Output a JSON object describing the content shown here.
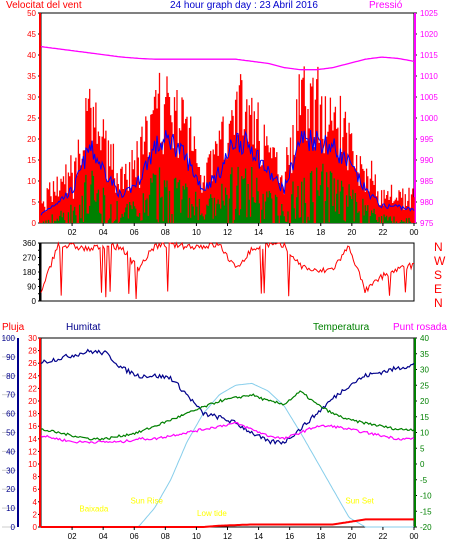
{
  "header": {
    "wind_speed": "Velocitat del vent",
    "title": "24 hour graph day : 23 Abril 2016",
    "pressure": "Pressió",
    "rain": "Pluja",
    "humidity": "Humitat",
    "temperature": "Temperatura",
    "dewpoint": "Punt rosada"
  },
  "colors": {
    "wind": "#0000ff",
    "gust": "#ff0000",
    "green": "#008000",
    "pressure": "#ff00ff",
    "humidity": "#00008b",
    "temperature": "#008000",
    "dewpoint": "#ff00ff",
    "rain": "#ff0000",
    "solar": "#87ceeb",
    "annotation": "#ffff00"
  },
  "annotations": [
    {
      "text": "Baixada",
      "x": 3.4,
      "y": -15
    },
    {
      "text": "Sun Rise",
      "x": 6.8,
      "y": -12.5
    },
    {
      "text": "Low tide",
      "x": 11.0,
      "y": -16.5
    },
    {
      "text": "Sun Set",
      "x": 20.5,
      "y": -12.5
    }
  ],
  "chart_data": [
    {
      "type": "line",
      "x_ticks": [
        "02",
        "04",
        "06",
        "08",
        "10",
        "12",
        "14",
        "16",
        "18",
        "20",
        "22",
        "00"
      ],
      "xlim": [
        0,
        24
      ],
      "left_axis": {
        "ticks": [
          0,
          5,
          10,
          15,
          20,
          25,
          30,
          35,
          40,
          45,
          50
        ],
        "ylim": [
          0,
          50
        ]
      },
      "right_axis": {
        "ticks": [
          975,
          980,
          985,
          990,
          995,
          1000,
          1005,
          1010,
          1015,
          1020,
          1025
        ],
        "ylim": [
          975,
          1025
        ]
      },
      "series": [
        {
          "name": "Velocitat del vent",
          "values": [
            2,
            5,
            8,
            18,
            12,
            6,
            10,
            18,
            20,
            15,
            8,
            12,
            20,
            18,
            12,
            8,
            20,
            20,
            18,
            14,
            8,
            4,
            4,
            3
          ]
        },
        {
          "name": "Pressió",
          "values": [
            1017,
            1016.5,
            1016,
            1015.5,
            1015,
            1014.5,
            1014.2,
            1014,
            1014,
            1014,
            1014,
            1014,
            1014,
            1013.5,
            1013,
            1012,
            1011.5,
            1011.5,
            1012,
            1013,
            1014,
            1014.5,
            1014.2,
            1013.5
          ]
        }
      ]
    },
    {
      "type": "line",
      "xlim": [
        0,
        24
      ],
      "y_ticks_left": [
        0,
        45,
        90,
        135,
        180,
        225,
        270,
        315,
        360
      ],
      "y_labels_right": [
        "N",
        "W",
        "S",
        "E",
        "N"
      ],
      "series": [
        {
          "values": [
            40,
            345,
            340,
            320,
            345,
            330,
            200,
            340,
            350,
            340,
            340,
            350,
            200,
            320,
            350,
            340,
            220,
            180,
            200,
            340,
            60,
            150,
            200,
            220
          ]
        }
      ]
    },
    {
      "type": "line",
      "xlim": [
        0,
        24
      ],
      "humidity_axis": {
        "ticks": [
          0,
          10,
          20,
          30,
          40,
          50,
          60,
          70,
          80,
          90,
          100
        ],
        "ylim": [
          0,
          100
        ]
      },
      "rain_axis": {
        "ticks": [
          0,
          2,
          4,
          6,
          8,
          10,
          12,
          14,
          16,
          18,
          20,
          22,
          24,
          26,
          28,
          30
        ],
        "ylim": [
          0,
          30
        ]
      },
      "temperature_axis": {
        "ticks": [
          -20,
          -15,
          -10,
          -5,
          0,
          5,
          10,
          15,
          20,
          25,
          30,
          35,
          40
        ],
        "ylim": [
          -20,
          40
        ]
      },
      "series": [
        {
          "name": "Humitat",
          "values": [
            87,
            89,
            91,
            93,
            92,
            84,
            80,
            80,
            79,
            70,
            60,
            58,
            55,
            50,
            45,
            45,
            52,
            60,
            68,
            75,
            80,
            82,
            84,
            86
          ]
        },
        {
          "name": "Temperatura",
          "values": [
            11,
            10,
            9,
            8,
            8,
            9,
            10,
            12,
            14,
            16,
            18,
            20,
            21,
            22,
            20,
            19,
            23,
            19,
            16,
            14,
            13,
            12,
            11,
            11
          ]
        },
        {
          "name": "Punt rosada",
          "values": [
            9,
            8,
            7,
            7,
            7,
            7,
            8,
            8,
            9,
            10,
            11,
            12,
            13,
            11,
            9,
            8,
            10,
            12,
            12,
            11,
            10,
            9,
            8,
            8
          ]
        },
        {
          "values": [
            0,
            0,
            0,
            0,
            0,
            0,
            0,
            10,
            25,
            45,
            60,
            70,
            75,
            76,
            72,
            64,
            50,
            35,
            20,
            5,
            0,
            0,
            0,
            0
          ]
        },
        {
          "values": [
            0,
            0,
            0,
            0,
            0,
            0,
            0,
            0,
            0,
            0,
            0,
            0.2,
            0.3,
            0.4,
            0.4,
            0.4,
            0.4,
            0.4,
            0.4,
            0.8,
            1.2,
            1.2,
            1.2,
            1.2
          ]
        }
      ]
    }
  ]
}
